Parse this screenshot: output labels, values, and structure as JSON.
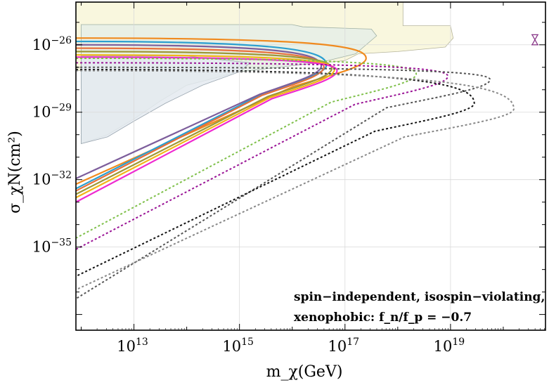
{
  "chart_data": {
    "type": "line",
    "xlabel": "m_χ(GeV)",
    "ylabel": "σ_χN(cm²)",
    "x_scale": "log",
    "y_scale": "log",
    "xlim_log10": [
      11.9,
      20.8
    ],
    "ylim_log10": [
      -38.7,
      -24.1
    ],
    "x_ticks": [
      {
        "base": "10",
        "exp": "13",
        "log10": 13
      },
      {
        "base": "10",
        "exp": "15",
        "log10": 15
      },
      {
        "base": "10",
        "exp": "17",
        "log10": 17
      },
      {
        "base": "10",
        "exp": "19",
        "log10": 19
      }
    ],
    "y_ticks": [
      {
        "base": "10",
        "exp": "−26",
        "log10": -26
      },
      {
        "base": "10",
        "exp": "−29",
        "log10": -29
      },
      {
        "base": "10",
        "exp": "−32",
        "log10": -32
      },
      {
        "base": "10",
        "exp": "−35",
        "log10": -35
      }
    ],
    "grid": true,
    "annotation_lines": [
      "spin−independent, isospin−violating,",
      "xenophobic: f_n/f_p = −0.7"
    ],
    "regions": [
      {
        "color": "#f8f6d8",
        "stroke": "#b5b49a",
        "points": [
          [
            11.9,
            -24.1
          ],
          [
            18.1,
            -24.1
          ],
          [
            18.1,
            -25.15
          ],
          [
            19.0,
            -25.15
          ],
          [
            19.05,
            -25.7
          ],
          [
            18.9,
            -26.1
          ],
          [
            18.0,
            -26.3
          ],
          [
            17.25,
            -26.4
          ],
          [
            17.0,
            -26.7
          ],
          [
            16.6,
            -26.8
          ],
          [
            16.0,
            -26.9
          ],
          [
            15.0,
            -27.0
          ],
          [
            13.5,
            -27.0
          ],
          [
            12.5,
            -27.1
          ],
          [
            11.9,
            -27.15
          ]
        ]
      },
      {
        "color": "#e6eee8",
        "stroke": "#9fb0a4",
        "points": [
          [
            12.0,
            -25.1
          ],
          [
            16.0,
            -25.1
          ],
          [
            16.2,
            -25.2
          ],
          [
            17.5,
            -25.3
          ],
          [
            17.6,
            -25.6
          ],
          [
            17.2,
            -26.4
          ],
          [
            16.5,
            -26.8
          ],
          [
            15.0,
            -27.2
          ],
          [
            14.0,
            -27.8
          ],
          [
            13.5,
            -28.5
          ],
          [
            13.0,
            -29.3
          ],
          [
            12.5,
            -30.0
          ],
          [
            12.0,
            -30.4
          ]
        ]
      },
      {
        "color": "#e4eaf0",
        "stroke": "#9aa6b0",
        "points": [
          [
            12.0,
            -26.5
          ],
          [
            14.0,
            -26.5
          ],
          [
            15.2,
            -26.8
          ],
          [
            15.0,
            -27.2
          ],
          [
            14.3,
            -27.8
          ],
          [
            13.6,
            -28.6
          ],
          [
            13.0,
            -29.4
          ],
          [
            12.5,
            -30.1
          ],
          [
            12.0,
            -30.4
          ]
        ]
      }
    ],
    "series": [
      {
        "color": "#f08a1e",
        "style": "solid",
        "tip_log10_x": 17.4,
        "tip_log10_y": -26.6,
        "upper_left_y": -25.7,
        "lower_left_y": -32.2
      },
      {
        "color": "#2b9fd0",
        "style": "solid",
        "tip_log10_x": 16.65,
        "tip_log10_y": -26.9,
        "upper_left_y": -25.85,
        "lower_left_y": -32.4
      },
      {
        "color": "#7d5e9c",
        "style": "solid",
        "tip_log10_x": 16.55,
        "tip_log10_y": -26.95,
        "upper_left_y": -26.0,
        "lower_left_y": -31.95
      },
      {
        "color": "#e8703a",
        "style": "solid",
        "tip_log10_x": 16.6,
        "tip_log10_y": -27.0,
        "upper_left_y": -26.15,
        "lower_left_y": -32.5
      },
      {
        "color": "#9c9838",
        "style": "solid",
        "tip_log10_x": 16.75,
        "tip_log10_y": -27.05,
        "upper_left_y": -26.3,
        "lower_left_y": -32.65
      },
      {
        "color": "#f2b418",
        "style": "solid",
        "tip_log10_x": 16.8,
        "tip_log10_y": -27.1,
        "upper_left_y": -26.45,
        "lower_left_y": -32.8
      },
      {
        "color": "#ef2ad0",
        "style": "solid",
        "tip_log10_x": 16.85,
        "tip_log10_y": -27.15,
        "upper_left_y": -26.55,
        "lower_left_y": -33.0
      },
      {
        "color": "#7fc04a",
        "style": "dashed",
        "tip_log10_x": 18.35,
        "tip_log10_y": -27.3,
        "upper_left_y": -26.6,
        "lower_left_y": -34.6
      },
      {
        "color": "#9a1496",
        "style": "dashed",
        "tip_log10_x": 18.95,
        "tip_log10_y": -27.4,
        "upper_left_y": -26.8,
        "lower_left_y": -35.1
      },
      {
        "color": "#555555",
        "style": "dashed",
        "tip_log10_x": 19.75,
        "tip_log10_y": -27.55,
        "upper_left_y": -27.0,
        "lower_left_y": -37.3
      },
      {
        "color": "#111111",
        "style": "dashed",
        "tip_log10_x": 19.45,
        "tip_log10_y": -28.6,
        "upper_left_y": -27.1,
        "lower_left_y": -36.3
      },
      {
        "color": "#888888",
        "style": "dashed",
        "tip_log10_x": 20.2,
        "tip_log10_y": -28.85,
        "upper_left_y": -27.15,
        "lower_left_y": -36.9
      }
    ],
    "marker": {
      "color": "#8a3a8a",
      "log10_x": 20.6,
      "log10_y": -25.8,
      "y_low": -26.0,
      "y_high": -25.55
    }
  }
}
